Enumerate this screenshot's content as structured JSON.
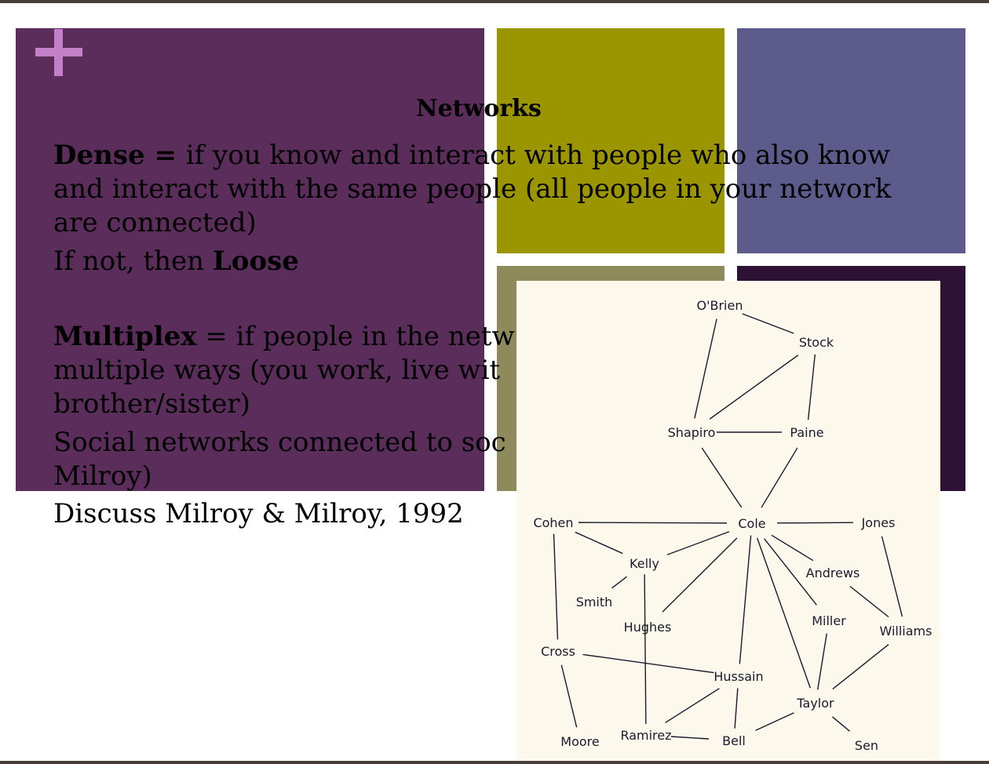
{
  "colors": {
    "frame": "#4a3f38",
    "purple": "#5a2d5a",
    "olive": "#9b9600",
    "slate": "#5c5b8c",
    "khaki": "#8e8a5c",
    "plum": "#2e1236",
    "plus": "#c47fc9",
    "network_bg": "#fcf8ec",
    "edge": "#1a1a2e"
  },
  "slide": {
    "title": "Networks",
    "dense": {
      "term": "Dense",
      "equals": " = ",
      "line1": "if you know and interact with people who also know",
      "line2": "and interact with the same people (all people in your network",
      "line3": "are connected)"
    },
    "loose": {
      "prefix": "If not, then ",
      "term": "Loose"
    },
    "multiplex": {
      "term": "Multiplex",
      "equals": " = ",
      "line1": "if people in the netw",
      "line2": "multiple ways (you work, live wit",
      "line3": "brother/sister)"
    },
    "social": {
      "line1": "Social networks connected to soc",
      "line2": "Milroy)"
    },
    "discuss": "Discuss Milroy & Milroy, 1992"
  },
  "network": {
    "nodes": [
      {
        "id": "obrien",
        "label": "O'Brien"
      },
      {
        "id": "stock",
        "label": "Stock"
      },
      {
        "id": "shapiro",
        "label": "Shapiro"
      },
      {
        "id": "paine",
        "label": "Paine"
      },
      {
        "id": "cohen",
        "label": "Cohen"
      },
      {
        "id": "cole",
        "label": "Cole"
      },
      {
        "id": "jones",
        "label": "Jones"
      },
      {
        "id": "kelly",
        "label": "Kelly"
      },
      {
        "id": "andrews",
        "label": "Andrews"
      },
      {
        "id": "smith",
        "label": "Smith"
      },
      {
        "id": "hughes",
        "label": "Hughes"
      },
      {
        "id": "miller",
        "label": "Miller"
      },
      {
        "id": "williams",
        "label": "Williams"
      },
      {
        "id": "cross",
        "label": "Cross"
      },
      {
        "id": "hussain",
        "label": "Hussain"
      },
      {
        "id": "taylor",
        "label": "Taylor"
      },
      {
        "id": "moore",
        "label": "Moore"
      },
      {
        "id": "ramirez",
        "label": "Ramirez"
      },
      {
        "id": "bell",
        "label": "Bell"
      },
      {
        "id": "sen",
        "label": "Sen"
      }
    ]
  }
}
